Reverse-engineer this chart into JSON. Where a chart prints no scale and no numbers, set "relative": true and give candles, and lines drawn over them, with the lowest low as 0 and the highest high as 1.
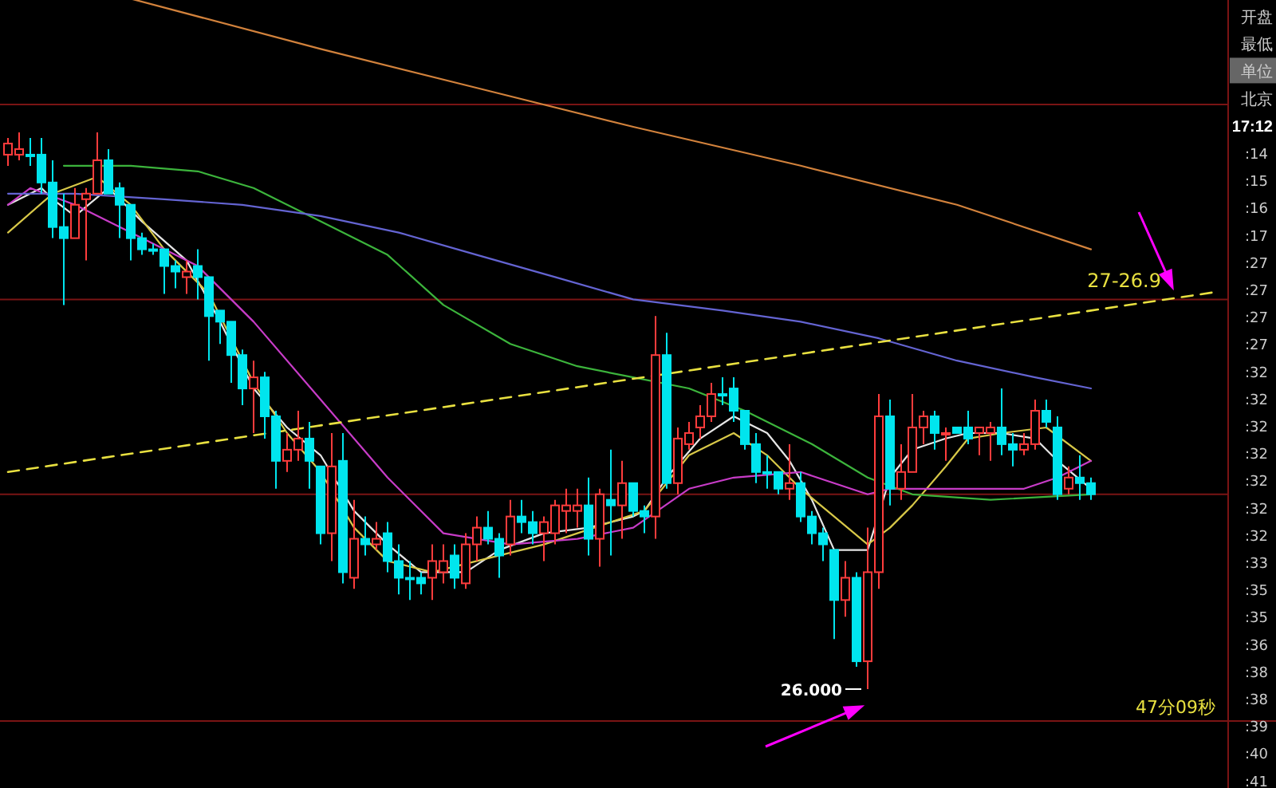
{
  "chart_data": {
    "type": "candlestick",
    "relative": true,
    "categories": [
      null,
      null,
      null,
      null,
      null,
      null,
      null,
      null,
      null,
      null,
      null,
      null,
      null,
      null,
      null,
      null,
      null,
      null,
      null,
      null,
      null,
      null,
      null,
      null,
      null,
      null,
      null,
      null,
      null,
      null,
      null,
      null,
      null,
      null,
      null,
      null,
      null,
      null,
      null,
      null,
      null,
      null,
      null,
      null,
      null,
      null,
      null,
      null,
      null,
      null,
      null,
      null,
      null,
      null,
      null,
      null,
      null,
      null,
      null,
      null,
      null,
      null,
      null,
      null,
      null,
      null,
      null,
      null,
      null,
      null,
      null,
      null,
      null,
      null,
      null,
      null,
      null,
      null,
      null,
      null,
      null,
      null,
      null,
      null,
      null,
      null,
      null,
      null,
      null,
      null,
      null,
      null,
      null,
      null,
      null,
      null,
      null,
      null
    ],
    "ohlc": [
      [
        0.96,
        0.99,
        0.94,
        0.98
      ],
      [
        0.96,
        1.0,
        0.95,
        0.97
      ],
      [
        0.96,
        0.99,
        0.94,
        0.96
      ],
      [
        0.96,
        0.99,
        0.89,
        0.91
      ],
      [
        0.91,
        0.95,
        0.81,
        0.83
      ],
      [
        0.83,
        0.89,
        0.69,
        0.81
      ],
      [
        0.81,
        0.9,
        0.81,
        0.87
      ],
      [
        0.88,
        0.9,
        0.77,
        0.89
      ],
      [
        0.89,
        1.0,
        0.89,
        0.95
      ],
      [
        0.95,
        0.97,
        0.89,
        0.89
      ],
      [
        0.9,
        0.91,
        0.81,
        0.87
      ],
      [
        0.87,
        0.87,
        0.77,
        0.81
      ],
      [
        0.81,
        0.82,
        0.78,
        0.79
      ],
      [
        0.79,
        0.8,
        0.78,
        0.79
      ],
      [
        0.79,
        0.79,
        0.71,
        0.76
      ],
      [
        0.76,
        0.77,
        0.72,
        0.75
      ],
      [
        0.74,
        0.77,
        0.71,
        0.75
      ],
      [
        0.76,
        0.79,
        0.7,
        0.74
      ],
      [
        0.74,
        0.74,
        0.59,
        0.67
      ],
      [
        0.68,
        0.68,
        0.62,
        0.66
      ],
      [
        0.66,
        0.66,
        0.55,
        0.6
      ],
      [
        0.6,
        0.61,
        0.51,
        0.54
      ],
      [
        0.54,
        0.59,
        0.46,
        0.56
      ],
      [
        0.56,
        0.57,
        0.45,
        0.49
      ],
      [
        0.49,
        0.5,
        0.36,
        0.41
      ],
      [
        0.41,
        0.46,
        0.39,
        0.43
      ],
      [
        0.43,
        0.5,
        0.41,
        0.45
      ],
      [
        0.45,
        0.48,
        0.36,
        0.41
      ],
      [
        0.4,
        0.4,
        0.26,
        0.28
      ],
      [
        0.28,
        0.46,
        0.23,
        0.4
      ],
      [
        0.41,
        0.46,
        0.19,
        0.21
      ],
      [
        0.2,
        0.34,
        0.18,
        0.27
      ],
      [
        0.27,
        0.31,
        0.24,
        0.26
      ],
      [
        0.26,
        0.3,
        0.25,
        0.27
      ],
      [
        0.28,
        0.3,
        0.21,
        0.23
      ],
      [
        0.23,
        0.26,
        0.17,
        0.2
      ],
      [
        0.2,
        0.23,
        0.16,
        0.2
      ],
      [
        0.2,
        0.21,
        0.17,
        0.19
      ],
      [
        0.2,
        0.26,
        0.16,
        0.23
      ],
      [
        0.21,
        0.26,
        0.19,
        0.23
      ],
      [
        0.24,
        0.26,
        0.18,
        0.2
      ],
      [
        0.19,
        0.28,
        0.18,
        0.26
      ],
      [
        0.26,
        0.31,
        0.23,
        0.29
      ],
      [
        0.29,
        0.32,
        0.26,
        0.27
      ],
      [
        0.27,
        0.28,
        0.2,
        0.24
      ],
      [
        0.26,
        0.34,
        0.24,
        0.31
      ],
      [
        0.31,
        0.34,
        0.28,
        0.3
      ],
      [
        0.3,
        0.32,
        0.26,
        0.28
      ],
      [
        0.28,
        0.31,
        0.23,
        0.3
      ],
      [
        0.28,
        0.34,
        0.26,
        0.33
      ],
      [
        0.32,
        0.36,
        0.28,
        0.33
      ],
      [
        0.32,
        0.36,
        0.29,
        0.33
      ],
      [
        0.33,
        0.38,
        0.24,
        0.27
      ],
      [
        0.27,
        0.36,
        0.22,
        0.35
      ],
      [
        0.34,
        0.43,
        0.24,
        0.33
      ],
      [
        0.33,
        0.41,
        0.27,
        0.37
      ],
      [
        0.37,
        0.37,
        0.31,
        0.32
      ],
      [
        0.32,
        0.33,
        0.28,
        0.31
      ],
      [
        0.31,
        0.67,
        0.27,
        0.6
      ],
      [
        0.6,
        0.64,
        0.36,
        0.37
      ],
      [
        0.37,
        0.47,
        0.35,
        0.45
      ],
      [
        0.44,
        0.48,
        0.43,
        0.46
      ],
      [
        0.47,
        0.51,
        0.45,
        0.49
      ],
      [
        0.49,
        0.55,
        0.48,
        0.53
      ],
      [
        0.53,
        0.56,
        0.51,
        0.53
      ],
      [
        0.54,
        0.56,
        0.48,
        0.5
      ],
      [
        0.5,
        0.5,
        0.43,
        0.44
      ],
      [
        0.44,
        0.46,
        0.37,
        0.39
      ],
      [
        0.39,
        0.42,
        0.36,
        0.39
      ],
      [
        0.39,
        0.39,
        0.35,
        0.36
      ],
      [
        0.36,
        0.44,
        0.34,
        0.37
      ],
      [
        0.37,
        0.39,
        0.3,
        0.31
      ],
      [
        0.31,
        0.32,
        0.26,
        0.28
      ],
      [
        0.28,
        0.29,
        0.23,
        0.26
      ],
      [
        0.25,
        0.25,
        0.09,
        0.16
      ],
      [
        0.16,
        0.23,
        0.13,
        0.2
      ],
      [
        0.2,
        0.21,
        0.04,
        0.05
      ],
      [
        0.05,
        0.29,
        0,
        0.21
      ],
      [
        0.21,
        0.53,
        0.18,
        0.49
      ],
      [
        0.49,
        0.52,
        0.33,
        0.36
      ],
      [
        0.36,
        0.44,
        0.34,
        0.39
      ],
      [
        0.39,
        0.53,
        0.39,
        0.47
      ],
      [
        0.47,
        0.5,
        0.44,
        0.49
      ],
      [
        0.49,
        0.5,
        0.43,
        0.46
      ],
      [
        0.46,
        0.47,
        0.41,
        0.46
      ],
      [
        0.47,
        0.47,
        0.46,
        0.46
      ],
      [
        0.47,
        0.5,
        0.44,
        0.45
      ],
      [
        0.46,
        0.47,
        0.42,
        0.47
      ],
      [
        0.46,
        0.48,
        0.41,
        0.47
      ],
      [
        0.47,
        0.54,
        0.42,
        0.44
      ],
      [
        0.44,
        0.46,
        0.4,
        0.43
      ],
      [
        0.43,
        0.46,
        0.42,
        0.44
      ],
      [
        0.44,
        0.52,
        0.43,
        0.5
      ],
      [
        0.5,
        0.52,
        0.47,
        0.48
      ],
      [
        0.47,
        0.49,
        0.34,
        0.35
      ],
      [
        0.36,
        0.4,
        0.35,
        0.38
      ],
      [
        0.38,
        0.42,
        0.34,
        0.37
      ],
      [
        0.37,
        0.38,
        0.34,
        0.35
      ]
    ],
    "colors": [
      "#ff3c3c",
      "#ff3c3c",
      "#00e5ee",
      "#00e5ee",
      "#00e5ee",
      "#00e5ee",
      "#ff3c3c",
      "#ff3c3c",
      "#ff3c3c",
      "#00e5ee",
      "#00e5ee",
      "#00e5ee",
      "#00e5ee",
      "#00e5ee",
      "#00e5ee",
      "#00e5ee",
      "#ff3c3c",
      "#00e5ee",
      "#00e5ee",
      "#00e5ee",
      "#00e5ee",
      "#00e5ee",
      "#ff3c3c",
      "#00e5ee",
      "#00e5ee",
      "#ff3c3c",
      "#ff3c3c",
      "#00e5ee",
      "#00e5ee",
      "#ff3c3c",
      "#00e5ee",
      "#ff3c3c",
      "#00e5ee",
      "#ff3c3c",
      "#00e5ee",
      "#00e5ee",
      "#00e5ee",
      "#00e5ee",
      "#ff3c3c",
      "#ff3c3c",
      "#00e5ee",
      "#ff3c3c",
      "#ff3c3c",
      "#00e5ee",
      "#00e5ee",
      "#ff3c3c",
      "#00e5ee",
      "#00e5ee",
      "#ff3c3c",
      "#ff3c3c",
      "#ff3c3c",
      "#ff3c3c",
      "#00e5ee",
      "#ff3c3c",
      "#00e5ee",
      "#ff3c3c",
      "#00e5ee",
      "#00e5ee",
      "#ff3c3c",
      "#00e5ee",
      "#ff3c3c",
      "#ff3c3c",
      "#ff3c3c",
      "#ff3c3c",
      "#00e5ee",
      "#00e5ee",
      "#00e5ee",
      "#00e5ee",
      "#00e5ee",
      "#00e5ee",
      "#ff3c3c",
      "#00e5ee",
      "#00e5ee",
      "#00e5ee",
      "#00e5ee",
      "#ff3c3c",
      "#00e5ee",
      "#ff3c3c",
      "#ff3c3c",
      "#00e5ee",
      "#ff3c3c",
      "#ff3c3c",
      "#ff3c3c",
      "#00e5ee",
      "#ff3c3c",
      "#00e5ee",
      "#00e5ee",
      "#ff3c3c",
      "#ff3c3c",
      "#00e5ee",
      "#00e5ee",
      "#ff3c3c",
      "#ff3c3c",
      "#00e5ee",
      "#00e5ee",
      "#ff3c3c",
      "#00e5ee",
      "#00e5ee"
    ],
    "series": [
      {
        "type": "line",
        "color": "#e6e6e6",
        "values": [
          0.87,
          null,
          null,
          0.9,
          0.88,
          null,
          0.85,
          null,
          null,
          0.9,
          null,
          null,
          0.84,
          null,
          null,
          null,
          0.77,
          null,
          null,
          0.66,
          null,
          null,
          0.54,
          null,
          null,
          0.47,
          null,
          null,
          0.42,
          null,
          null,
          0.32,
          null,
          null,
          0.26,
          null,
          null,
          0.21,
          null,
          null,
          null,
          0.21,
          null,
          null,
          0.25,
          null,
          null,
          null,
          0.28,
          null,
          null,
          null,
          0.29,
          null,
          null,
          null,
          0.31,
          0.32,
          null,
          0.38,
          null,
          null,
          0.45,
          null,
          null,
          0.49,
          null,
          null,
          0.46,
          null,
          0.41,
          null,
          0.34,
          null,
          0.25,
          null,
          null,
          0.25,
          null,
          0.38,
          null,
          0.43,
          null,
          null,
          0.45,
          null,
          0.46,
          null,
          null,
          0.46,
          null,
          null,
          0.45,
          null,
          0.41,
          null,
          null,
          0.36
        ]
      },
      {
        "type": "line",
        "color": "#d8c848",
        "values": [
          0.82,
          null,
          null,
          null,
          0.89,
          null,
          null,
          null,
          0.92,
          null,
          null,
          0.87,
          null,
          null,
          0.79,
          null,
          null,
          null,
          0.71,
          null,
          null,
          null,
          0.55,
          null,
          null,
          0.46,
          null,
          null,
          0.39,
          null,
          null,
          0.29,
          null,
          null,
          0.23,
          null,
          null,
          null,
          0.21,
          null,
          null,
          null,
          0.23,
          null,
          null,
          null,
          null,
          null,
          0.26,
          null,
          null,
          null,
          null,
          null,
          0.3,
          null,
          null,
          0.32,
          null,
          null,
          null,
          0.42,
          null,
          null,
          null,
          0.46,
          null,
          null,
          0.42,
          null,
          null,
          0.36,
          null,
          null,
          0.31,
          null,
          null,
          0.26,
          null,
          0.29,
          null,
          0.33,
          null,
          null,
          0.4,
          null,
          0.45,
          null,
          null,
          0.46,
          null,
          null,
          null,
          0.47,
          null,
          null,
          null,
          0.41
        ]
      },
      {
        "type": "line",
        "color": "#c83cc8",
        "values": [
          0.87,
          null,
          0.9,
          null,
          null,
          null,
          0.87,
          null,
          null,
          null,
          null,
          0.82,
          null,
          null,
          null,
          null,
          null,
          0.76,
          null,
          null,
          null,
          null,
          0.66,
          null,
          null,
          null,
          null,
          null,
          0.52,
          null,
          null,
          null,
          null,
          null,
          0.38,
          null,
          null,
          null,
          null,
          0.28,
          null,
          null,
          null,
          null,
          null,
          0.26,
          null,
          null,
          null,
          null,
          null,
          0.27,
          null,
          null,
          null,
          null,
          0.29,
          null,
          null,
          null,
          null,
          0.36,
          null,
          null,
          null,
          0.38,
          null,
          null,
          null,
          null,
          null,
          0.39,
          null,
          null,
          null,
          null,
          null,
          0.35,
          null,
          0.36,
          null,
          null,
          null,
          null,
          null,
          0.36,
          null,
          null,
          null,
          null,
          null,
          0.36,
          null,
          null,
          0.38,
          null,
          null,
          0.41
        ]
      },
      {
        "type": "line",
        "color": "#3cb43c",
        "values": [
          null,
          null,
          null,
          null,
          null,
          0.94,
          null,
          null,
          null,
          null,
          null,
          0.94,
          null,
          null,
          null,
          null,
          null,
          0.93,
          null,
          null,
          null,
          null,
          0.9,
          null,
          null,
          null,
          null,
          null,
          0.84,
          null,
          null,
          null,
          null,
          null,
          0.78,
          null,
          null,
          null,
          null,
          0.69,
          null,
          null,
          null,
          null,
          null,
          0.62,
          null,
          null,
          null,
          null,
          null,
          0.58,
          null,
          null,
          null,
          null,
          0.56,
          null,
          null,
          null,
          null,
          0.54,
          null,
          null,
          null,
          null,
          0.5,
          null,
          null,
          null,
          null,
          null,
          0.44,
          null,
          null,
          null,
          null,
          0.38,
          null,
          null,
          null,
          0.35,
          null,
          null,
          null,
          null,
          null,
          null,
          0.34,
          null,
          null,
          null,
          null,
          null,
          null,
          null,
          null,
          0.35
        ]
      },
      {
        "type": "line",
        "color": "#6464d2",
        "values": [
          0.89,
          null,
          null,
          null,
          null,
          null,
          0.89,
          null,
          null,
          null,
          null,
          null,
          null,
          null,
          0.88,
          null,
          null,
          null,
          null,
          null,
          null,
          0.87,
          null,
          null,
          null,
          null,
          null,
          null,
          0.85,
          null,
          null,
          null,
          null,
          null,
          null,
          0.82,
          null,
          null,
          null,
          null,
          null,
          null,
          0.78,
          null,
          null,
          null,
          null,
          null,
          null,
          0.74,
          null,
          null,
          null,
          null,
          null,
          null,
          0.7,
          null,
          null,
          null,
          null,
          null,
          null,
          null,
          0.68,
          null,
          null,
          null,
          null,
          null,
          null,
          0.66,
          null,
          null,
          null,
          null,
          null,
          null,
          0.63,
          null,
          null,
          null,
          null,
          null,
          null,
          0.59,
          null,
          null,
          null,
          null,
          null,
          null,
          0.56,
          null,
          null,
          null,
          null,
          0.54
        ]
      },
      {
        "type": "line",
        "color": "#d2823c",
        "values": [
          null,
          null,
          null,
          null,
          null,
          null,
          null,
          null,
          null,
          null,
          null,
          1.24,
          null,
          null,
          null,
          null,
          null,
          null,
          null,
          null,
          null,
          null,
          null,
          null,
          null,
          null,
          null,
          null,
          1.15,
          null,
          null,
          null,
          null,
          null,
          null,
          null,
          null,
          null,
          null,
          null,
          null,
          null,
          1.08,
          null,
          null,
          null,
          null,
          null,
          null,
          null,
          null,
          null,
          null,
          null,
          null,
          null,
          1.01,
          null,
          null,
          null,
          null,
          null,
          null,
          null,
          null,
          null,
          null,
          null,
          null,
          null,
          null,
          0.94,
          null,
          null,
          null,
          null,
          null,
          null,
          null,
          null,
          null,
          null,
          null,
          null,
          null,
          0.87,
          null,
          null,
          null,
          null,
          null,
          null,
          null,
          null,
          null,
          null,
          null,
          0.79
        ]
      },
      {
        "type": "line",
        "color": "#e8e040",
        "line_style": "dashed",
        "values": [
          0.39,
          null,
          null,
          null,
          null,
          null,
          null,
          null,
          null,
          null,
          null,
          null,
          null,
          null,
          null,
          null,
          null,
          null,
          null,
          null,
          null,
          null,
          null,
          null,
          null,
          null,
          null,
          null,
          null,
          null,
          null,
          null,
          null,
          null,
          null,
          null,
          null,
          null,
          null,
          null,
          null,
          null,
          null,
          null,
          null,
          null,
          null,
          null,
          null,
          null,
          null,
          null,
          null,
          null,
          null,
          null,
          null,
          null,
          null,
          null,
          null,
          null,
          null,
          null,
          null,
          null,
          null,
          null,
          null,
          null,
          null,
          null,
          null,
          null,
          null,
          null,
          null,
          null,
          null,
          null,
          null,
          null,
          null,
          null,
          null,
          null,
          null,
          null,
          null,
          null,
          null,
          null,
          null,
          null,
          null,
          null,
          null,
          0.68
        ]
      }
    ],
    "ref_lines": [
      {
        "axis": "y",
        "value": 1.05,
        "color": "#7a1414"
      },
      {
        "axis": "y",
        "value": 0.7,
        "color": "#7a1414"
      },
      {
        "axis": "y",
        "value": 0.35,
        "color": "#7a1414"
      }
    ],
    "annotations": [
      "26.000",
      {
        "text": "27-26.9",
        "y": 0.71
      },
      "47分09秒",
      "开盘",
      "最低",
      "单位",
      "北京",
      "17:12",
      ":14",
      ":15",
      ":16",
      ":17",
      ":27",
      ":27",
      ":27",
      ":27",
      ":32",
      ":32",
      ":32",
      ":32",
      ":32",
      ":32",
      ":32",
      ":33",
      ":35",
      ":35",
      ":36",
      ":38",
      ":38",
      ":39",
      ":40",
      ":41"
    ]
  }
}
